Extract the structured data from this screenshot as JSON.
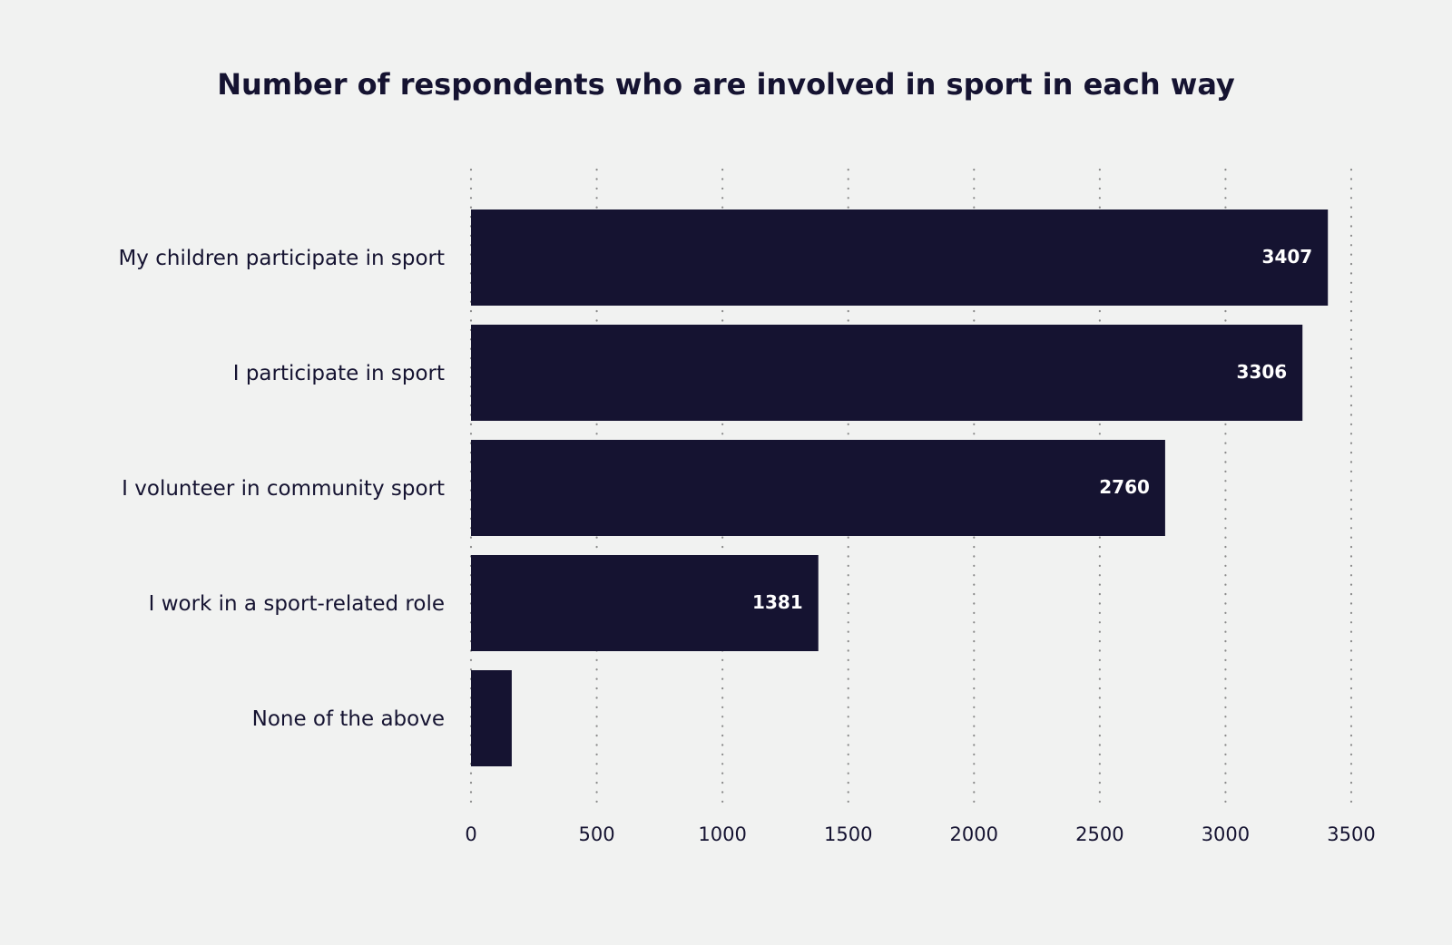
{
  "chart_data": {
    "type": "bar",
    "orientation": "horizontal",
    "title": "Number of respondents who are involved in sport in each way",
    "xlabel": "",
    "ylabel": "",
    "categories": [
      "My children participate in sport",
      "I participate in sport",
      "I volunteer in community sport",
      "I work in a sport-related role",
      "None of the above"
    ],
    "values": [
      3407,
      3306,
      2760,
      1381,
      162
    ],
    "data_labels": [
      "3407",
      "3306",
      "2760",
      "1381",
      ""
    ],
    "xlim": [
      0,
      3500
    ],
    "xticks": [
      0,
      500,
      1000,
      1500,
      2000,
      2500,
      3000,
      3500
    ],
    "xtick_labels": [
      "0",
      "500",
      "1000",
      "1500",
      "2000",
      "2500",
      "3000",
      "3500"
    ],
    "grid": "vertical dotted",
    "legend": "none",
    "colors": {
      "bar": "#151331",
      "background": "#f1f2f1",
      "grid": "#8a8a8a",
      "text": "#151331"
    }
  }
}
